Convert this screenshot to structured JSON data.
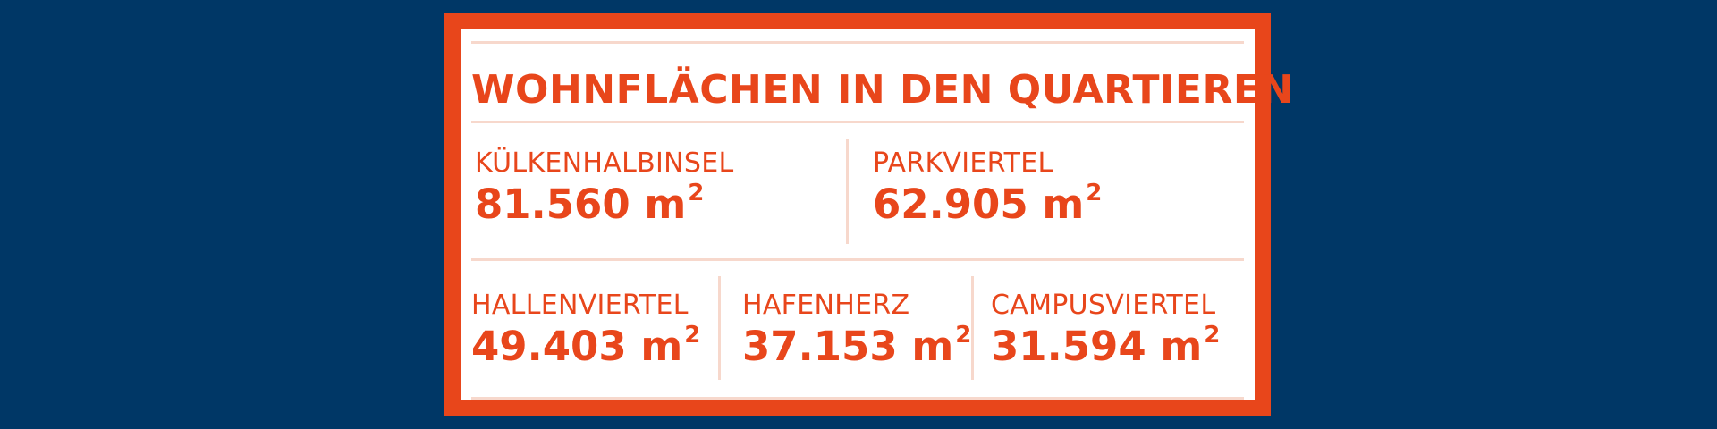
{
  "title": "WOHNFLÄCHEN IN DEN QUARTIEREN",
  "unit": "m",
  "unit_exponent": "2",
  "colors": {
    "background": "#003766",
    "accent": "#e8461b",
    "divider": "#f7d8cc",
    "card": "#ffffff"
  },
  "quarters": [
    {
      "name": "KÜLKENHALBINSEL",
      "value": "81.560"
    },
    {
      "name": "PARKVIERTEL",
      "value": "62.905"
    },
    {
      "name": "HALLENVIERTEL",
      "value": "49.403"
    },
    {
      "name": "HAFENHERZ",
      "value": "37.153"
    },
    {
      "name": "CAMPUSVIERTEL",
      "value": "31.594"
    }
  ]
}
